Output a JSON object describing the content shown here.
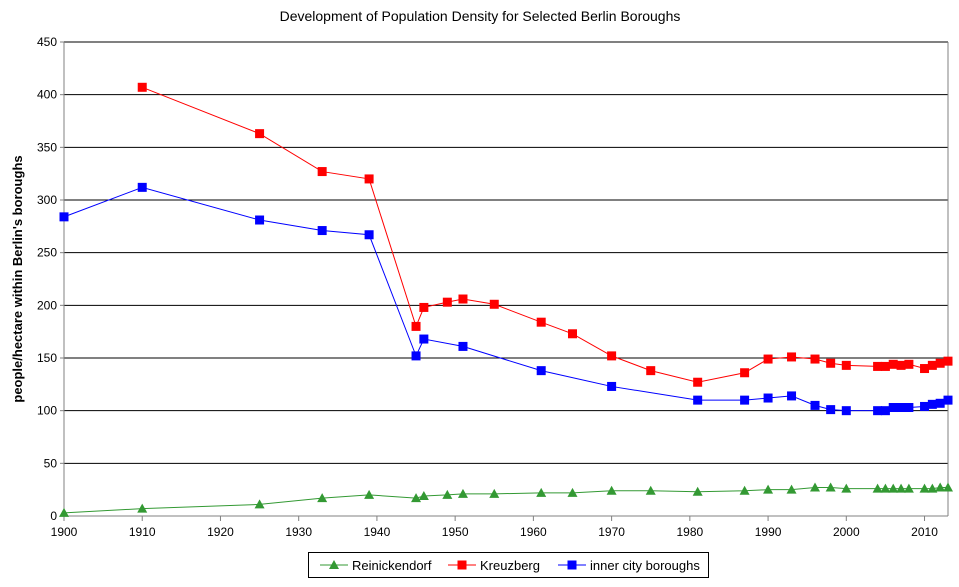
{
  "chart_data": {
    "type": "line",
    "title": "Development of Population Density for Selected Berlin Boroughs",
    "xlabel": "",
    "ylabel": "people/hectare within Berlin's boroughs",
    "xlim": [
      1900,
      2013
    ],
    "ylim": [
      0,
      450
    ],
    "xticks": [
      1900,
      1910,
      1920,
      1930,
      1940,
      1950,
      1960,
      1970,
      1980,
      1990,
      2000,
      2010
    ],
    "yticks": [
      0,
      50,
      100,
      150,
      200,
      250,
      300,
      350,
      400,
      450
    ],
    "grid": "horizontal",
    "legend_position": "bottom",
    "series": [
      {
        "name": "Reinickendorf",
        "color": "#339933",
        "marker": "triangle",
        "points": [
          [
            1900,
            3
          ],
          [
            1910,
            7
          ],
          [
            1925,
            11
          ],
          [
            1933,
            17
          ],
          [
            1939,
            20
          ],
          [
            1945,
            17
          ],
          [
            1946,
            19
          ],
          [
            1949,
            20
          ],
          [
            1951,
            21
          ],
          [
            1955,
            21
          ],
          [
            1961,
            22
          ],
          [
            1965,
            22
          ],
          [
            1970,
            24
          ],
          [
            1975,
            24
          ],
          [
            1981,
            23
          ],
          [
            1987,
            24
          ],
          [
            1990,
            25
          ],
          [
            1993,
            25
          ],
          [
            1996,
            27
          ],
          [
            1998,
            27
          ],
          [
            2000,
            26
          ],
          [
            2004,
            26
          ],
          [
            2005,
            26
          ],
          [
            2006,
            26
          ],
          [
            2007,
            26
          ],
          [
            2008,
            26
          ],
          [
            2010,
            26
          ],
          [
            2011,
            26
          ],
          [
            2012,
            27
          ],
          [
            2013,
            27
          ]
        ]
      },
      {
        "name": "Kreuzberg",
        "color": "#ff0000",
        "marker": "square",
        "points": [
          [
            1910,
            407
          ],
          [
            1925,
            363
          ],
          [
            1933,
            327
          ],
          [
            1939,
            320
          ],
          [
            1945,
            180
          ],
          [
            1946,
            198
          ],
          [
            1949,
            203
          ],
          [
            1951,
            206
          ],
          [
            1955,
            201
          ],
          [
            1961,
            184
          ],
          [
            1965,
            173
          ],
          [
            1970,
            152
          ],
          [
            1975,
            138
          ],
          [
            1981,
            127
          ],
          [
            1987,
            136
          ],
          [
            1990,
            149
          ],
          [
            1993,
            151
          ],
          [
            1996,
            149
          ],
          [
            1998,
            145
          ],
          [
            2000,
            143
          ],
          [
            2004,
            142
          ],
          [
            2005,
            142
          ],
          [
            2006,
            144
          ],
          [
            2007,
            143
          ],
          [
            2008,
            144
          ],
          [
            2010,
            140
          ],
          [
            2011,
            143
          ],
          [
            2012,
            145
          ],
          [
            2013,
            147
          ]
        ]
      },
      {
        "name": "inner city boroughs",
        "color": "#0000ff",
        "marker": "square",
        "points": [
          [
            1900,
            284
          ],
          [
            1910,
            312
          ],
          [
            1925,
            281
          ],
          [
            1933,
            271
          ],
          [
            1939,
            267
          ],
          [
            1945,
            152
          ],
          [
            1946,
            168
          ],
          [
            1951,
            161
          ],
          [
            1961,
            138
          ],
          [
            1970,
            123
          ],
          [
            1981,
            110
          ],
          [
            1987,
            110
          ],
          [
            1990,
            112
          ],
          [
            1993,
            114
          ],
          [
            1996,
            105
          ],
          [
            1998,
            101
          ],
          [
            2000,
            100
          ],
          [
            2004,
            100
          ],
          [
            2005,
            100
          ],
          [
            2006,
            103
          ],
          [
            2007,
            103
          ],
          [
            2008,
            103
          ],
          [
            2010,
            104
          ],
          [
            2011,
            106
          ],
          [
            2012,
            107
          ],
          [
            2013,
            110
          ]
        ]
      }
    ]
  }
}
